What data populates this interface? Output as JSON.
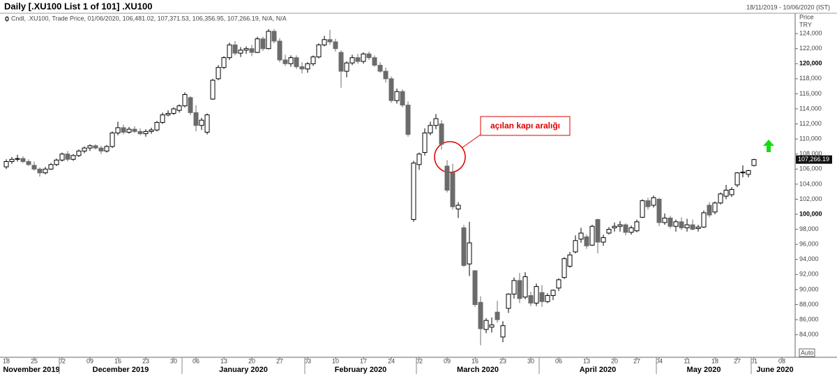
{
  "chart_data": {
    "type": "candlestick",
    "title": "Daily [.XU100 List 1 of 101] .XU100",
    "date_range": "18/11/2019 - 10/06/2020 (IST)",
    "legend_text": "Cndl, .XU100, Trade Price, 01/06/2020, 106,481.02, 107,371.53, 106,356.95, 107,266.19, N/A, N/A",
    "y_axis_title": "Price",
    "y_axis_unit": "TRY",
    "scale_mode": "Auto",
    "annotation": "açılan kapı aralığı",
    "last_price": {
      "value": 107266.19,
      "label": "107,266.19"
    },
    "up_color": "#ffffff",
    "down_color": "#6b6b6b",
    "ylim": [
      81000,
      126700
    ],
    "yticks": [
      {
        "value": 84000,
        "label": "84,000"
      },
      {
        "value": 86000,
        "label": "86,000"
      },
      {
        "value": 88000,
        "label": "88,000"
      },
      {
        "value": 90000,
        "label": "90,000"
      },
      {
        "value": 92000,
        "label": "92,000"
      },
      {
        "value": 94000,
        "label": "94,000"
      },
      {
        "value": 96000,
        "label": "96,000"
      },
      {
        "value": 98000,
        "label": "98,000"
      },
      {
        "value": 100000,
        "label": "100,000"
      },
      {
        "value": 102000,
        "label": "102,000"
      },
      {
        "value": 104000,
        "label": "104,000"
      },
      {
        "value": 106000,
        "label": "106,000"
      },
      {
        "value": 108000,
        "label": "108,000"
      },
      {
        "value": 110000,
        "label": "110,000"
      },
      {
        "value": 112000,
        "label": "112,000"
      },
      {
        "value": 114000,
        "label": "114,000"
      },
      {
        "value": 116000,
        "label": "116,000"
      },
      {
        "value": 118000,
        "label": "118,000"
      },
      {
        "value": 120000,
        "label": "120,000"
      },
      {
        "value": 122000,
        "label": "122,000"
      },
      {
        "value": 124000,
        "label": "124,000"
      }
    ],
    "month_labels": [
      "November 2019",
      "December 2019",
      "January 2020",
      "February 2020",
      "March 2020",
      "April 2020",
      "May 2020",
      "June 2020"
    ],
    "categories": [
      "18",
      null,
      null,
      null,
      null,
      "25",
      null,
      null,
      null,
      null,
      "02",
      null,
      null,
      null,
      null,
      "09",
      null,
      null,
      null,
      null,
      "16",
      null,
      null,
      null,
      null,
      "23",
      null,
      null,
      null,
      null,
      "30",
      null,
      null,
      null,
      "06",
      null,
      null,
      null,
      null,
      "13",
      null,
      null,
      null,
      null,
      "20",
      null,
      null,
      null,
      null,
      "27",
      null,
      null,
      null,
      null,
      "03",
      null,
      null,
      null,
      null,
      "10",
      null,
      null,
      null,
      null,
      "17",
      null,
      null,
      null,
      null,
      "24",
      null,
      null,
      null,
      null,
      "02",
      null,
      null,
      null,
      null,
      "09",
      null,
      null,
      null,
      null,
      "16",
      null,
      null,
      null,
      null,
      "23",
      null,
      null,
      null,
      null,
      "30",
      null,
      null,
      null,
      null,
      "06",
      null,
      null,
      null,
      null,
      "13",
      null,
      null,
      null,
      null,
      "20",
      null,
      null,
      null,
      "27",
      null,
      null,
      null,
      "04",
      null,
      null,
      null,
      null,
      "11",
      null,
      null,
      null,
      null,
      "18",
      null,
      null,
      null,
      "27",
      null,
      null,
      "01",
      null,
      null,
      null,
      null,
      "08"
    ],
    "ohlc": [
      [
        106300,
        107300,
        106000,
        107000
      ],
      [
        107000,
        107600,
        106700,
        107300
      ],
      [
        107300,
        107900,
        107000,
        107400
      ],
      [
        107400,
        107700,
        106800,
        107000
      ],
      [
        107000,
        107300,
        106400,
        106600
      ],
      [
        106500,
        107000,
        105800,
        106000
      ],
      [
        106000,
        106200,
        105000,
        105500
      ],
      [
        105500,
        106300,
        105300,
        106000
      ],
      [
        106000,
        106800,
        105900,
        106600
      ],
      [
        106600,
        107400,
        106400,
        107200
      ],
      [
        107200,
        108200,
        107000,
        108000
      ],
      [
        108000,
        108400,
        107000,
        107300
      ],
      [
        107300,
        108000,
        107100,
        107800
      ],
      [
        107800,
        108600,
        107600,
        108400
      ],
      [
        108400,
        109000,
        108100,
        108800
      ],
      [
        108800,
        109300,
        108400,
        109100
      ],
      [
        109100,
        109300,
        108600,
        108800
      ],
      [
        108800,
        109100,
        108000,
        108400
      ],
      [
        108400,
        109200,
        108200,
        109000
      ],
      [
        109000,
        111000,
        108800,
        110800
      ],
      [
        110800,
        112300,
        110500,
        111500
      ],
      [
        111500,
        111900,
        110600,
        110900
      ],
      [
        110900,
        111600,
        110700,
        111300
      ],
      [
        111300,
        111700,
        110800,
        111000
      ],
      [
        111000,
        111400,
        110500,
        110700
      ],
      [
        110700,
        111300,
        110300,
        111000
      ],
      [
        111000,
        111500,
        110700,
        111200
      ],
      [
        111200,
        112400,
        111000,
        112200
      ],
      [
        112200,
        113500,
        112000,
        113200
      ],
      [
        113200,
        113800,
        113000,
        113400
      ],
      [
        113400,
        114200,
        113200,
        114000
      ],
      [
        113800,
        114600,
        113500,
        114400
      ],
      [
        114400,
        116200,
        114200,
        115900
      ],
      [
        115500,
        115700,
        113200,
        113500
      ],
      [
        113500,
        114500,
        111000,
        111800
      ],
      [
        111800,
        112800,
        111200,
        112500
      ],
      [
        110900,
        113400,
        110600,
        113200
      ],
      [
        115300,
        118000,
        115200,
        117800
      ],
      [
        118000,
        119800,
        117800,
        119500
      ],
      [
        119500,
        121000,
        119300,
        120800
      ],
      [
        120800,
        122800,
        120500,
        122500
      ],
      [
        122500,
        123000,
        121100,
        121400
      ],
      [
        121400,
        122200,
        120900,
        121800
      ],
      [
        121800,
        122300,
        121300,
        122000
      ],
      [
        122000,
        122500,
        121000,
        121500
      ],
      [
        121500,
        123600,
        121400,
        123300
      ],
      [
        123300,
        123600,
        121700,
        122000
      ],
      [
        122000,
        124600,
        121900,
        124300
      ],
      [
        124300,
        124600,
        122700,
        123000
      ],
      [
        123000,
        123400,
        120200,
        120500
      ],
      [
        120500,
        121200,
        119700,
        120000
      ],
      [
        120000,
        121100,
        119600,
        120800
      ],
      [
        120800,
        121100,
        119300,
        119600
      ],
      [
        119600,
        120200,
        118700,
        119300
      ],
      [
        119300,
        120200,
        118800,
        120000
      ],
      [
        120000,
        121100,
        119700,
        120900
      ],
      [
        120900,
        122700,
        120700,
        122500
      ],
      [
        122500,
        123700,
        122300,
        123200
      ],
      [
        123200,
        124500,
        122500,
        122900
      ],
      [
        122900,
        123300,
        121600,
        122000
      ],
      [
        121500,
        121800,
        116800,
        119000
      ],
      [
        119000,
        120300,
        118200,
        120100
      ],
      [
        120100,
        121200,
        119800,
        120800
      ],
      [
        120800,
        121300,
        120000,
        120300
      ],
      [
        120300,
        121500,
        120000,
        121300
      ],
      [
        121300,
        121600,
        120500,
        120800
      ],
      [
        120800,
        121100,
        119600,
        119800
      ],
      [
        119800,
        120200,
        118800,
        119000
      ],
      [
        119000,
        119500,
        117500,
        118000
      ],
      [
        118000,
        118300,
        114800,
        115100
      ],
      [
        115100,
        116700,
        114700,
        116300
      ],
      [
        116300,
        116600,
        114200,
        114500
      ],
      [
        114500,
        115000,
        110300,
        110600
      ],
      [
        99300,
        107100,
        99000,
        106800
      ],
      [
        106600,
        108200,
        105900,
        108000
      ],
      [
        108200,
        111400,
        107800,
        110800
      ],
      [
        110800,
        112300,
        110500,
        111800
      ],
      [
        111800,
        113300,
        111300,
        112700
      ],
      [
        112000,
        112500,
        108600,
        109300
      ],
      [
        106400,
        107200,
        102900,
        103200
      ],
      [
        105500,
        106700,
        100600,
        101000
      ],
      [
        100700,
        101600,
        99500,
        101200
      ],
      [
        98200,
        98600,
        93000,
        93200
      ],
      [
        93400,
        99000,
        91800,
        96200
      ],
      [
        92500,
        92600,
        87700,
        88000
      ],
      [
        88300,
        89100,
        82600,
        84800
      ],
      [
        84700,
        86200,
        84200,
        85900
      ],
      [
        85000,
        86300,
        84300,
        85300
      ],
      [
        87000,
        88500,
        85600,
        86000
      ],
      [
        83700,
        85800,
        83000,
        85200
      ],
      [
        87500,
        89500,
        86900,
        89400
      ],
      [
        89400,
        91600,
        88800,
        91200
      ],
      [
        91200,
        92200,
        88200,
        88800
      ],
      [
        89000,
        92300,
        88700,
        91700
      ],
      [
        89200,
        89700,
        87800,
        88200
      ],
      [
        88200,
        90800,
        87800,
        90400
      ],
      [
        89600,
        90600,
        87700,
        88400
      ],
      [
        88400,
        89500,
        88200,
        89200
      ],
      [
        89200,
        90000,
        88600,
        89900
      ],
      [
        90200,
        91500,
        89800,
        91300
      ],
      [
        91600,
        94300,
        91400,
        94100
      ],
      [
        93100,
        95000,
        92900,
        94600
      ],
      [
        95000,
        97200,
        94800,
        96500
      ],
      [
        96700,
        98200,
        96200,
        97500
      ],
      [
        97000,
        97300,
        95400,
        95800
      ],
      [
        95900,
        98600,
        95800,
        98400
      ],
      [
        99300,
        99400,
        94800,
        96300
      ],
      [
        96300,
        97300,
        95800,
        96900
      ],
      [
        97500,
        98300,
        97300,
        98000
      ],
      [
        98200,
        98900,
        97700,
        98400
      ],
      [
        98400,
        99100,
        97700,
        98600
      ],
      [
        98600,
        98800,
        97200,
        97600
      ],
      [
        97600,
        98500,
        97300,
        98200
      ],
      [
        97800,
        99300,
        97600,
        99000
      ],
      [
        99600,
        102000,
        99500,
        101800
      ],
      [
        101800,
        102200,
        100600,
        101000
      ],
      [
        101200,
        102500,
        100900,
        102200
      ],
      [
        102000,
        102200,
        98400,
        98900
      ],
      [
        98900,
        100100,
        98600,
        99500
      ],
      [
        99500,
        99800,
        98100,
        98400
      ],
      [
        98400,
        99300,
        97700,
        99000
      ],
      [
        99000,
        99600,
        97900,
        98200
      ],
      [
        98200,
        99400,
        97700,
        98600
      ],
      [
        98600,
        99300,
        97900,
        98000
      ],
      [
        98100,
        98600,
        97700,
        98300
      ],
      [
        98300,
        100500,
        98200,
        100200
      ],
      [
        101200,
        101600,
        99600,
        99900
      ],
      [
        100300,
        101700,
        100000,
        101500
      ],
      [
        101500,
        102900,
        101300,
        102700
      ],
      [
        102400,
        103900,
        102000,
        103200
      ],
      [
        102600,
        103600,
        102300,
        103300
      ],
      [
        103900,
        105600,
        103600,
        105500
      ],
      [
        105500,
        106500,
        104900,
        105600
      ],
      [
        105300,
        105900,
        104900,
        105800
      ],
      [
        106481.02,
        107371.53,
        106356.95,
        107266.19
      ],
      null,
      null,
      null,
      null,
      null
    ]
  }
}
